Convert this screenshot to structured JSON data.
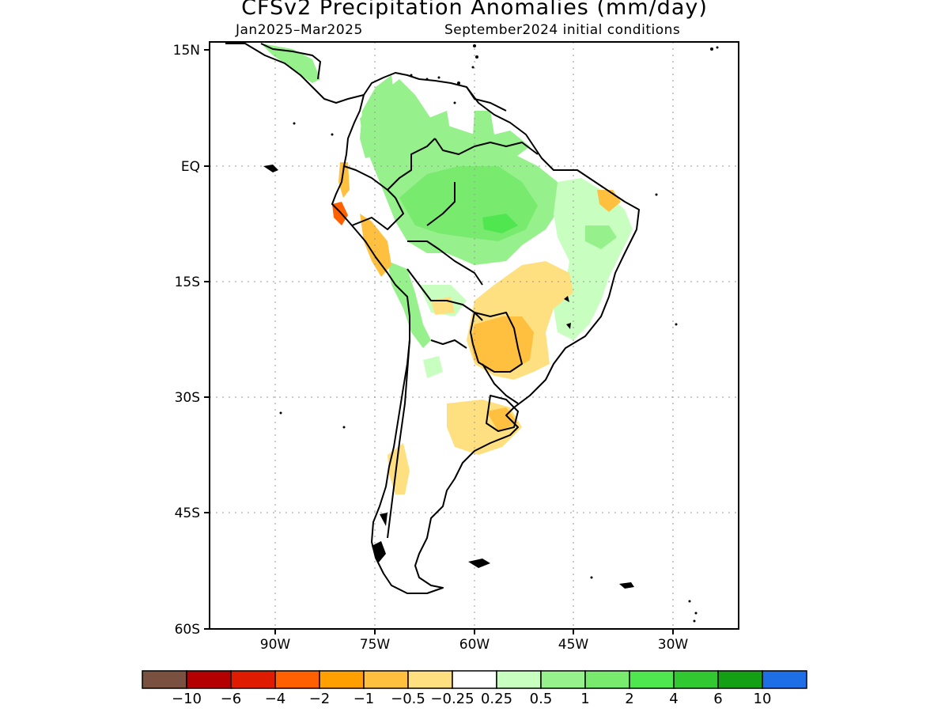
{
  "title": "CFSv2 Precipitation Anomalies (mm/day)",
  "subtitle_left": "Jan2025–Mar2025",
  "subtitle_right": "September2024 initial conditions",
  "lat_labels": [
    "15N",
    "EQ",
    "15S",
    "30S",
    "45S",
    "60S"
  ],
  "lon_labels": [
    "90W",
    "75W",
    "60W",
    "45W",
    "30W"
  ],
  "colorbar": {
    "colors": [
      "#7a5040",
      "#b40000",
      "#e01c00",
      "#ff6000",
      "#ffa000",
      "#ffc040",
      "#ffe080",
      "#ffffff",
      "#c8ffc0",
      "#96f08c",
      "#78ea6e",
      "#50e650",
      "#32c832",
      "#14a014",
      "#1e6ee6"
    ],
    "labels": [
      "−10",
      "−6",
      "−4",
      "−2",
      "−1",
      "−0.5",
      "−0.25",
      "0.25",
      "0.5",
      "1",
      "2",
      "4",
      "6",
      "10"
    ]
  },
  "legend_colors": {
    "land_green_light": "#c8ffc0",
    "land_green": "#96f08c",
    "land_green_mid": "#78ea6e",
    "land_green_dark": "#50e650",
    "dry_light": "#ffe080",
    "dry": "#ffc040",
    "dry_strong": "#ffa000",
    "dry_stronger": "#ff6000"
  }
}
